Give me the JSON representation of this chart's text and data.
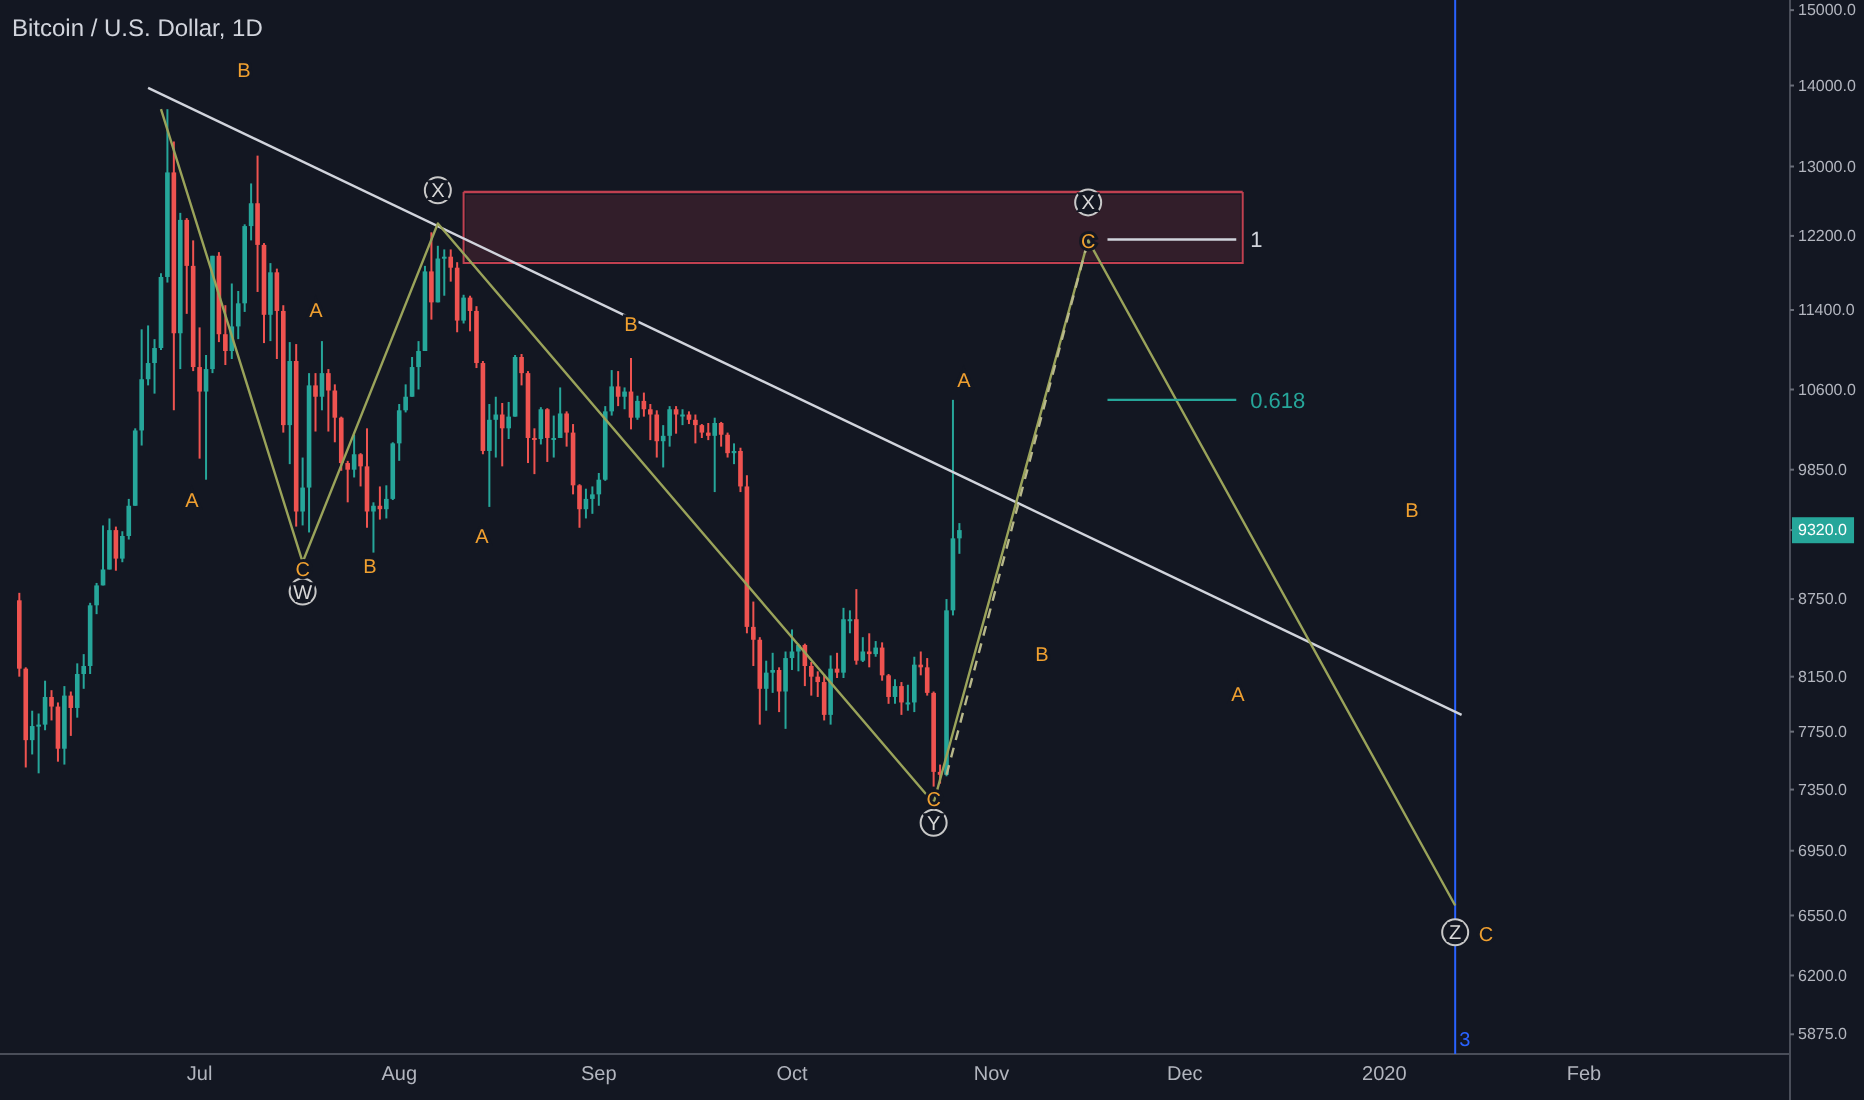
{
  "chart_data": {
    "type": "candlestick",
    "title": "Bitcoin / U.S. Dollar, 1D",
    "log": "y",
    "xlim": [
      "2019-05-31",
      "2020-03-04"
    ],
    "ylim": [
      5770,
      15140
    ],
    "xticks": [
      {
        "value": "2019-07-01",
        "label": "Jul"
      },
      {
        "value": "2019-08-01",
        "label": "Aug"
      },
      {
        "value": "2019-09-01",
        "label": "Sep"
      },
      {
        "value": "2019-10-01",
        "label": "Oct"
      },
      {
        "value": "2019-11-01",
        "label": "Nov"
      },
      {
        "value": "2019-12-01",
        "label": "Dec"
      },
      {
        "value": "2020-01-01",
        "label": "2020"
      },
      {
        "value": "2020-02-01",
        "label": "Feb"
      }
    ],
    "yticks": [
      {
        "value": 15000,
        "label": "15000.0"
      },
      {
        "value": 14000,
        "label": "14000.0"
      },
      {
        "value": 13000,
        "label": "13000.0"
      },
      {
        "value": 12200,
        "label": "12200.0"
      },
      {
        "value": 11400,
        "label": "11400.0"
      },
      {
        "value": 10600,
        "label": "10600.0"
      },
      {
        "value": 9850,
        "label": "9850.0"
      },
      {
        "value": 9320,
        "label": "9320.0"
      },
      {
        "value": 8750,
        "label": "8750.0"
      },
      {
        "value": 8150,
        "label": "8150.0"
      },
      {
        "value": 7750,
        "label": "7750.0"
      },
      {
        "value": 7350,
        "label": "7350.0"
      },
      {
        "value": 6950,
        "label": "6950.0"
      },
      {
        "value": 6550,
        "label": "6550.0"
      },
      {
        "value": 6200,
        "label": "6200.0"
      },
      {
        "value": 5875,
        "label": "5875.0"
      }
    ],
    "x": [
      "2019-06-03",
      "2019-06-04",
      "2019-06-05",
      "2019-06-06",
      "2019-06-07",
      "2019-06-08",
      "2019-06-09",
      "2019-06-10",
      "2019-06-11",
      "2019-06-12",
      "2019-06-13",
      "2019-06-14",
      "2019-06-15",
      "2019-06-16",
      "2019-06-17",
      "2019-06-18",
      "2019-06-19",
      "2019-06-20",
      "2019-06-21",
      "2019-06-22",
      "2019-06-23",
      "2019-06-24",
      "2019-06-25",
      "2019-06-26",
      "2019-06-27",
      "2019-06-28",
      "2019-06-29",
      "2019-06-30",
      "2019-07-01",
      "2019-07-02",
      "2019-07-03",
      "2019-07-04",
      "2019-07-05",
      "2019-07-06",
      "2019-07-07",
      "2019-07-08",
      "2019-07-09",
      "2019-07-10",
      "2019-07-11",
      "2019-07-12",
      "2019-07-13",
      "2019-07-14",
      "2019-07-15",
      "2019-07-16",
      "2019-07-17",
      "2019-07-18",
      "2019-07-19",
      "2019-07-20",
      "2019-07-21",
      "2019-07-22",
      "2019-07-23",
      "2019-07-24",
      "2019-07-25",
      "2019-07-26",
      "2019-07-27",
      "2019-07-28",
      "2019-07-29",
      "2019-07-30",
      "2019-07-31",
      "2019-08-01",
      "2019-08-02",
      "2019-08-03",
      "2019-08-04",
      "2019-08-05",
      "2019-08-06",
      "2019-08-07",
      "2019-08-08",
      "2019-08-09",
      "2019-08-10",
      "2019-08-11",
      "2019-08-12",
      "2019-08-13",
      "2019-08-14",
      "2019-08-15",
      "2019-08-16",
      "2019-08-17",
      "2019-08-18",
      "2019-08-19",
      "2019-08-20",
      "2019-08-21",
      "2019-08-22",
      "2019-08-23",
      "2019-08-24",
      "2019-08-25",
      "2019-08-26",
      "2019-08-27",
      "2019-08-28",
      "2019-08-29",
      "2019-08-30",
      "2019-08-31",
      "2019-09-01",
      "2019-09-02",
      "2019-09-03",
      "2019-09-04",
      "2019-09-05",
      "2019-09-06",
      "2019-09-07",
      "2019-09-08",
      "2019-09-09",
      "2019-09-10",
      "2019-09-11",
      "2019-09-12",
      "2019-09-13",
      "2019-09-14",
      "2019-09-15",
      "2019-09-16",
      "2019-09-17",
      "2019-09-18",
      "2019-09-19",
      "2019-09-20",
      "2019-09-21",
      "2019-09-22",
      "2019-09-23",
      "2019-09-24",
      "2019-09-25",
      "2019-09-26",
      "2019-09-27",
      "2019-09-28",
      "2019-09-29",
      "2019-09-30",
      "2019-10-01",
      "2019-10-02",
      "2019-10-03",
      "2019-10-04",
      "2019-10-05",
      "2019-10-06",
      "2019-10-07",
      "2019-10-08",
      "2019-10-09",
      "2019-10-10",
      "2019-10-11",
      "2019-10-12",
      "2019-10-13",
      "2019-10-14",
      "2019-10-15",
      "2019-10-16",
      "2019-10-17",
      "2019-10-18",
      "2019-10-19",
      "2019-10-20",
      "2019-10-21",
      "2019-10-22",
      "2019-10-23",
      "2019-10-24",
      "2019-10-25",
      "2019-10-26",
      "2019-10-27"
    ],
    "ohlc": [
      [
        8740,
        8800,
        8150,
        8210
      ],
      [
        8210,
        8220,
        7500,
        7690
      ],
      [
        7690,
        7900,
        7590,
        7790
      ],
      [
        7790,
        7880,
        7460,
        7800
      ],
      [
        7800,
        8120,
        7760,
        8000
      ],
      [
        8000,
        8050,
        7830,
        7930
      ],
      [
        7930,
        7960,
        7540,
        7630
      ],
      [
        7630,
        8080,
        7520,
        8010
      ],
      [
        8010,
        8040,
        7720,
        7920
      ],
      [
        7920,
        8250,
        7850,
        8170
      ],
      [
        8170,
        8320,
        8060,
        8230
      ],
      [
        8230,
        8720,
        8170,
        8700
      ],
      [
        8700,
        8880,
        8630,
        8860
      ],
      [
        8860,
        9360,
        8860,
        8990
      ],
      [
        8990,
        9420,
        8990,
        9320
      ],
      [
        9320,
        9350,
        8980,
        9080
      ],
      [
        9080,
        9310,
        9050,
        9270
      ],
      [
        9270,
        9590,
        9240,
        9530
      ],
      [
        9530,
        10230,
        9530,
        10210
      ],
      [
        10210,
        11200,
        10070,
        10700
      ],
      [
        10700,
        11240,
        10640,
        10860
      ],
      [
        10860,
        11100,
        10560,
        11010
      ],
      [
        11010,
        11790,
        10990,
        11750
      ],
      [
        11750,
        13700,
        11690,
        12930
      ],
      [
        12930,
        13300,
        10400,
        11160
      ],
      [
        11160,
        12460,
        10800,
        12380
      ],
      [
        12380,
        12400,
        11360,
        11870
      ],
      [
        11870,
        12150,
        10780,
        10820
      ],
      [
        10820,
        11220,
        9950,
        10580
      ],
      [
        10580,
        10940,
        9760,
        10800
      ],
      [
        10800,
        11980,
        10760,
        11980
      ],
      [
        11980,
        12020,
        11070,
        11150
      ],
      [
        11150,
        11450,
        10840,
        10980
      ],
      [
        10980,
        11680,
        10900,
        11230
      ],
      [
        11230,
        11600,
        11100,
        11470
      ],
      [
        11470,
        12330,
        11380,
        12310
      ],
      [
        12310,
        12800,
        12150,
        12570
      ],
      [
        12570,
        13130,
        11590,
        12100
      ],
      [
        12100,
        12120,
        11060,
        11350
      ],
      [
        11350,
        11900,
        11080,
        11800
      ],
      [
        11800,
        11840,
        10900,
        11390
      ],
      [
        11390,
        11450,
        10190,
        10260
      ],
      [
        10260,
        11070,
        9900,
        10880
      ],
      [
        10880,
        11050,
        9350,
        9480
      ],
      [
        9480,
        9960,
        9360,
        9690
      ],
      [
        9690,
        10760,
        9300,
        10640
      ],
      [
        10640,
        10760,
        10200,
        10530
      ],
      [
        10530,
        11080,
        10400,
        10760
      ],
      [
        10760,
        10800,
        10200,
        10590
      ],
      [
        10590,
        10650,
        10100,
        10330
      ],
      [
        10330,
        10340,
        9840,
        9910
      ],
      [
        9910,
        9930,
        9560,
        9850
      ],
      [
        9850,
        10170,
        9780,
        9990
      ],
      [
        9990,
        10000,
        9700,
        9880
      ],
      [
        9880,
        10230,
        9340,
        9480
      ],
      [
        9480,
        9560,
        9130,
        9530
      ],
      [
        9530,
        9700,
        9410,
        9500
      ],
      [
        9500,
        9710,
        9420,
        9590
      ],
      [
        9590,
        10100,
        9580,
        10090
      ],
      [
        10090,
        10460,
        9930,
        10400
      ],
      [
        10400,
        10650,
        10380,
        10530
      ],
      [
        10530,
        10920,
        10530,
        10820
      ],
      [
        10820,
        11080,
        10600,
        10980
      ],
      [
        10980,
        11870,
        10980,
        11810
      ],
      [
        11810,
        12240,
        11300,
        11480
      ],
      [
        11480,
        12090,
        11480,
        11950
      ],
      [
        11950,
        12050,
        11550,
        11970
      ],
      [
        11970,
        12050,
        11700,
        11850
      ],
      [
        11850,
        11910,
        11170,
        11290
      ],
      [
        11290,
        11560,
        11260,
        11530
      ],
      [
        11530,
        11550,
        11180,
        11390
      ],
      [
        11390,
        11440,
        10810,
        10860
      ],
      [
        10860,
        10880,
        9990,
        10020
      ],
      [
        10020,
        10460,
        9520,
        10310
      ],
      [
        10310,
        10530,
        9960,
        10360
      ],
      [
        10360,
        10470,
        9880,
        10230
      ],
      [
        10230,
        10480,
        10130,
        10340
      ],
      [
        10340,
        10940,
        10340,
        10920
      ],
      [
        10920,
        10950,
        10640,
        10760
      ],
      [
        10760,
        10780,
        9910,
        10140
      ],
      [
        10140,
        10230,
        9810,
        10130
      ],
      [
        10130,
        10430,
        10080,
        10410
      ],
      [
        10410,
        10420,
        9920,
        10140
      ],
      [
        10140,
        10350,
        9960,
        10140
      ],
      [
        10140,
        10620,
        10140,
        10370
      ],
      [
        10370,
        10390,
        10060,
        10190
      ],
      [
        10190,
        10270,
        9630,
        9710
      ],
      [
        9710,
        9720,
        9340,
        9500
      ],
      [
        9500,
        9680,
        9420,
        9590
      ],
      [
        9590,
        9700,
        9460,
        9630
      ],
      [
        9630,
        9820,
        9530,
        9760
      ],
      [
        9760,
        10440,
        9750,
        10390
      ],
      [
        10390,
        10790,
        10350,
        10630
      ],
      [
        10630,
        10780,
        10440,
        10530
      ],
      [
        10530,
        10620,
        10410,
        10580
      ],
      [
        10580,
        10910,
        10220,
        10330
      ],
      [
        10330,
        10540,
        10310,
        10490
      ],
      [
        10490,
        10570,
        10340,
        10410
      ],
      [
        10410,
        10460,
        10120,
        10360
      ],
      [
        10360,
        10400,
        9960,
        10110
      ],
      [
        10110,
        10260,
        9870,
        10160
      ],
      [
        10160,
        10440,
        10060,
        10410
      ],
      [
        10410,
        10440,
        10180,
        10360
      ],
      [
        10360,
        10410,
        10260,
        10360
      ],
      [
        10360,
        10390,
        10270,
        10310
      ],
      [
        10310,
        10360,
        10090,
        10260
      ],
      [
        10260,
        10270,
        10140,
        10190
      ],
      [
        10190,
        10280,
        10120,
        10160
      ],
      [
        10160,
        10330,
        9650,
        10280
      ],
      [
        10280,
        10290,
        10060,
        10170
      ],
      [
        10170,
        10190,
        9960,
        10000
      ],
      [
        10000,
        10090,
        9900,
        10020
      ],
      [
        10020,
        10050,
        9650,
        9700
      ],
      [
        9700,
        9800,
        8480,
        8530
      ],
      [
        8530,
        8730,
        8230,
        8430
      ],
      [
        8430,
        8450,
        7800,
        8060
      ],
      [
        8060,
        8270,
        7900,
        8180
      ],
      [
        8180,
        8330,
        8030,
        8200
      ],
      [
        8200,
        8220,
        7890,
        8040
      ],
      [
        8040,
        8340,
        7770,
        8290
      ],
      [
        8290,
        8510,
        8200,
        8340
      ],
      [
        8340,
        8400,
        8190,
        8390
      ],
      [
        8390,
        8400,
        8080,
        8230
      ],
      [
        8230,
        8260,
        8010,
        8150
      ],
      [
        8150,
        8190,
        8000,
        8110
      ],
      [
        8110,
        8170,
        7830,
        7870
      ],
      [
        7870,
        8310,
        7800,
        8210
      ],
      [
        8210,
        8330,
        8140,
        8180
      ],
      [
        8180,
        8680,
        8140,
        8590
      ],
      [
        8590,
        8660,
        8480,
        8590
      ],
      [
        8590,
        8830,
        8240,
        8270
      ],
      [
        8270,
        8450,
        8260,
        8340
      ],
      [
        8340,
        8480,
        8220,
        8320
      ],
      [
        8320,
        8420,
        8300,
        8370
      ],
      [
        8370,
        8410,
        8120,
        8160
      ],
      [
        8160,
        8170,
        7950,
        8000
      ],
      [
        8000,
        8130,
        7950,
        8080
      ],
      [
        8080,
        8110,
        7870,
        7960
      ],
      [
        7960,
        8090,
        7900,
        7960
      ],
      [
        7960,
        8300,
        7890,
        8240
      ],
      [
        8240,
        8340,
        8160,
        8220
      ],
      [
        8220,
        8290,
        8010,
        8030
      ],
      [
        8030,
        8040,
        7370,
        7470
      ],
      [
        7470,
        7520,
        7390,
        7450
      ],
      [
        7450,
        8750,
        7440,
        8660
      ],
      [
        8660,
        10500,
        8620,
        9250
      ],
      [
        9250,
        9380,
        9120,
        9320
      ]
    ],
    "series": [
      {
        "type": "line",
        "color": "#c04050",
        "x": [
          "2019-08-11",
          "2019-12-10"
        ],
        "values": [
          12700,
          12700
        ],
        "lower": [
          11900,
          11900
        ],
        "upper": [
          12700,
          12700
        ]
      },
      {
        "type": "line",
        "color": "#d1d4dc",
        "x": [
          "2019-06-23",
          "2020-01-13"
        ],
        "values": [
          13970,
          7870
        ]
      },
      {
        "type": "line",
        "color": "#9aa35a",
        "x": [
          "2019-06-25",
          "2019-07-17",
          "2019-08-07",
          "2019-10-23",
          "2019-11-16",
          "2020-01-12"
        ],
        "values": [
          13700,
          9050,
          12340,
          7260,
          12150,
          6610
        ]
      },
      {
        "type": "line",
        "color": "#b8b88a",
        "line_style": "dashed",
        "x": [
          "2019-10-25",
          "2019-11-16"
        ],
        "values": [
          7450,
          12150
        ]
      },
      {
        "type": "line",
        "name": "1",
        "color": "#d1d4dc",
        "x": [
          "2019-11-19",
          "2019-12-09"
        ],
        "values": [
          12160,
          12160
        ]
      },
      {
        "type": "line",
        "name": "0.618",
        "color": "#26a69a",
        "x": [
          "2019-11-19",
          "2019-12-09"
        ],
        "values": [
          10500,
          10500
        ]
      }
    ],
    "ref_lines": [
      {
        "axis": "x",
        "value": "2020-01-12",
        "label": "3",
        "color": "#2962ff"
      }
    ],
    "annotations": [
      {
        "text": "X",
        "x": "2019-08-07",
        "y": 12720
      },
      {
        "text": "W",
        "x": "2019-07-17",
        "y": 8810
      },
      {
        "text": "Y",
        "x": "2019-10-23",
        "y": 7130
      },
      {
        "text": "X",
        "x": "2019-11-16",
        "y": 12580
      },
      {
        "text": "Z",
        "x": "2020-01-12",
        "y": 6450
      },
      {
        "text": "C",
        "x": "2019-07-17",
        "y": 8990
      },
      {
        "text": "B",
        "x": "2019-09-06",
        "y": 11260
      },
      {
        "text": "C",
        "x": "2019-10-23",
        "y": 7290
      },
      {
        "text": "C",
        "x": "2019-11-16",
        "y": 12140
      },
      "B",
      "A",
      "A",
      "B",
      "A",
      "A",
      "B",
      "B",
      "A",
      "C"
    ]
  }
}
